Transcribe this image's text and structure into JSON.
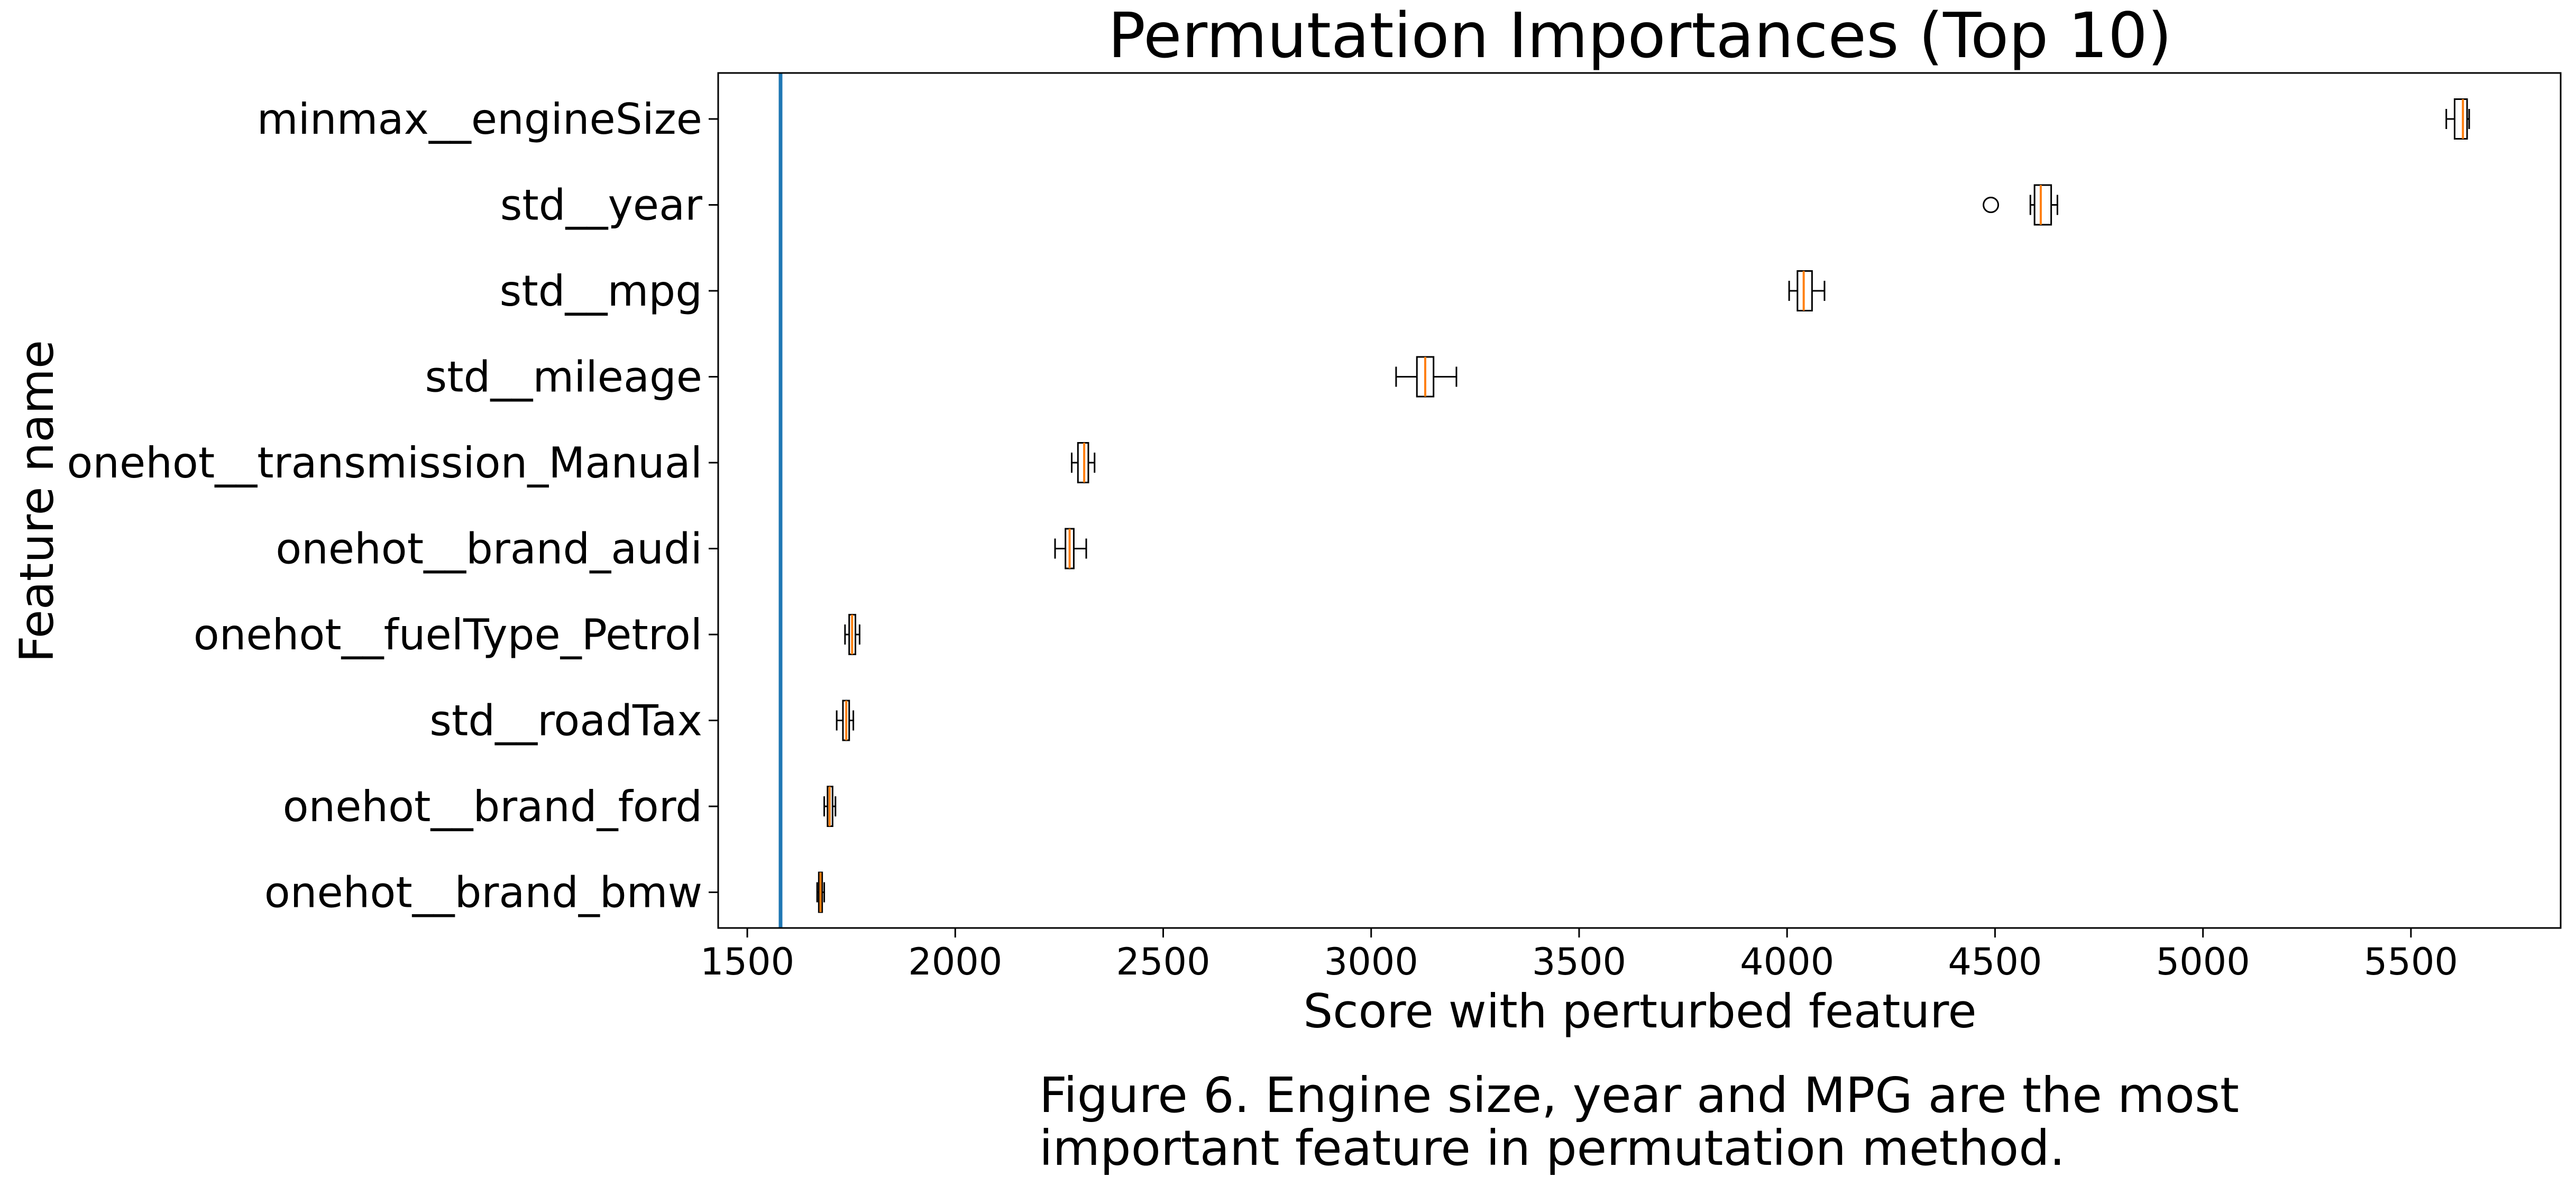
{
  "chart_data": {
    "type": "boxplot",
    "title": "Permutation Importances (Top 10)",
    "xlabel": "Score with perturbed feature",
    "ylabel": "Feature name",
    "xlim": [
      1430,
      5860
    ],
    "xticks": [
      1500,
      2000,
      2500,
      3000,
      3500,
      4000,
      4500,
      5000,
      5500
    ],
    "xtick_labels": [
      "1500",
      "2000",
      "2500",
      "3000",
      "3500",
      "4000",
      "4500",
      "5000",
      "5500"
    ],
    "baseline": 1580,
    "baseline_color": "#1f77b4",
    "box_color": "#000000",
    "median_color": "#ff7f0e",
    "categories": [
      "minmax__engineSize",
      "std__year",
      "std__mpg",
      "std__mileage",
      "onehot__transmission_Manual",
      "onehot__brand_audi",
      "onehot__fuelType_Petrol",
      "std__roadTax",
      "onehot__brand_ford",
      "onehot__brand_bmw"
    ],
    "boxes": [
      {
        "whislo": 5585,
        "q1": 5605,
        "med": 5625,
        "q3": 5635,
        "whishi": 5640,
        "fliers": []
      },
      {
        "whislo": 4585,
        "q1": 4595,
        "med": 4610,
        "q3": 4635,
        "whishi": 4650,
        "fliers": [
          4490
        ]
      },
      {
        "whislo": 4005,
        "q1": 4025,
        "med": 4040,
        "q3": 4060,
        "whishi": 4090,
        "fliers": []
      },
      {
        "whislo": 3060,
        "q1": 3110,
        "med": 3130,
        "q3": 3150,
        "whishi": 3205,
        "fliers": []
      },
      {
        "whislo": 2280,
        "q1": 2295,
        "med": 2310,
        "q3": 2320,
        "whishi": 2335,
        "fliers": []
      },
      {
        "whislo": 2240,
        "q1": 2265,
        "med": 2275,
        "q3": 2285,
        "whishi": 2315,
        "fliers": []
      },
      {
        "whislo": 1735,
        "q1": 1745,
        "med": 1752,
        "q3": 1760,
        "whishi": 1770,
        "fliers": []
      },
      {
        "whislo": 1715,
        "q1": 1730,
        "med": 1738,
        "q3": 1745,
        "whishi": 1755,
        "fliers": []
      },
      {
        "whislo": 1685,
        "q1": 1693,
        "med": 1698,
        "q3": 1705,
        "whishi": 1712,
        "fliers": []
      },
      {
        "whislo": 1668,
        "q1": 1672,
        "med": 1676,
        "q3": 1680,
        "whishi": 1685,
        "fliers": []
      }
    ]
  },
  "caption": {
    "line1": "Figure 6. Engine size, year and MPG are the most",
    "line2": "important feature in permutation method."
  }
}
